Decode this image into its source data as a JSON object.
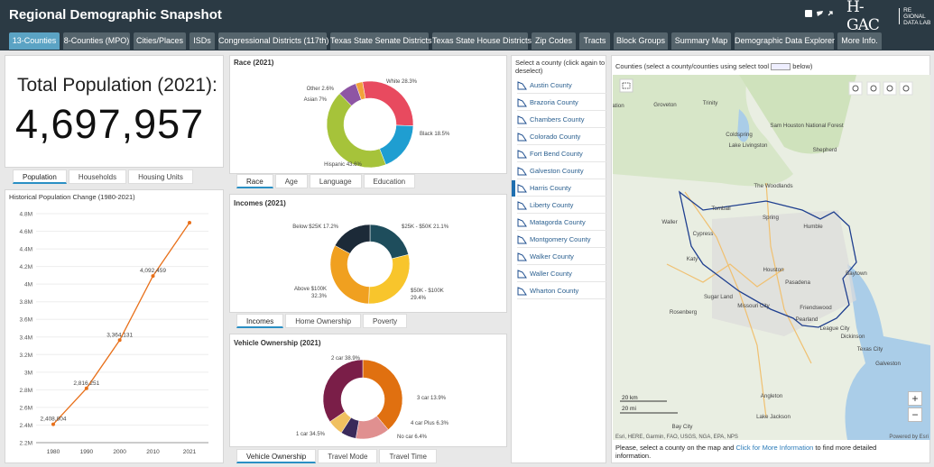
{
  "header": {
    "title": "Regional Demographic Snapshot",
    "social_icons": [
      "facebook-icon",
      "twitter-icon",
      "link-icon"
    ],
    "logo_text": "RE GIONAL DATA LAB",
    "logo_mark": "H-GAC"
  },
  "tabs": [
    {
      "label": "13-Counties",
      "active": true
    },
    {
      "label": "8-Counties (MPO)"
    },
    {
      "label": "Cities/Places"
    },
    {
      "label": "ISDs"
    },
    {
      "label": "Congressional Districts (117th)"
    },
    {
      "label": "Texas State Senate Districts"
    },
    {
      "label": "Texas State House Districts"
    },
    {
      "label": "Zip Codes"
    },
    {
      "label": "Tracts"
    },
    {
      "label": "Block Groups"
    },
    {
      "label": "Summary Map"
    },
    {
      "label": "Demographic Data Explorer"
    },
    {
      "label": "More Info."
    }
  ],
  "total": {
    "label": "Total Population (2021):",
    "value": "4,697,957"
  },
  "pop_tabs": [
    "Population",
    "Households",
    "Housing Units"
  ],
  "line_chart": {
    "title": "Historical Population Change (1980-2021)",
    "chart_data": {
      "type": "line",
      "x": [
        1980,
        1990,
        2000,
        2010,
        2021
      ],
      "y": [
        2408804,
        2816251,
        3364131,
        4092459,
        4697957
      ],
      "point_labels": [
        "2,408,804",
        "2,816,251",
        "3,364,131",
        "4,092,459",
        ""
      ],
      "ylim": [
        2200000,
        4800000
      ],
      "y_ticks": [
        "2.2M",
        "2.4M",
        "2.6M",
        "2.8M",
        "3M",
        "3.2M",
        "3.4M",
        "3.6M",
        "3.8M",
        "4M",
        "4.2M",
        "4.4M",
        "4.6M",
        "4.8M"
      ],
      "x_ticks": [
        "1980",
        "1990",
        "2000",
        "2010",
        "2021"
      ],
      "color": "#e8701a"
    }
  },
  "race": {
    "title": "Race (2021)",
    "chart_data": {
      "type": "pie",
      "slices": [
        {
          "label": "White 28.3%",
          "value": 28.3,
          "color": "#e84a5f"
        },
        {
          "label": "Black 18.5%",
          "value": 18.5,
          "color": "#1f9ed1"
        },
        {
          "label": "Hispanic 43.6%",
          "value": 43.6,
          "color": "#a6c33a"
        },
        {
          "label": "Asian 7%",
          "value": 7.0,
          "color": "#8e55a4"
        },
        {
          "label": "Other 2.6%",
          "value": 2.6,
          "color": "#f2a33a"
        }
      ]
    },
    "tabs": [
      "Race",
      "Age",
      "Language",
      "Education"
    ]
  },
  "incomes": {
    "title": "Incomes (2021)",
    "chart_data": {
      "type": "pie",
      "slices": [
        {
          "label": "$25K - $50K 21.1%",
          "value": 21.1,
          "color": "#1e4d5c"
        },
        {
          "label": "$50K - $100K 29.4%",
          "value": 29.4,
          "color": "#f8c52c"
        },
        {
          "label": "Above $100K 32.3%",
          "value": 32.3,
          "color": "#f0a020"
        },
        {
          "label": "Below $25K 17.2%",
          "value": 17.2,
          "color": "#1c2a38"
        }
      ]
    },
    "tabs": [
      "Incomes",
      "Home Ownership",
      "Poverty"
    ]
  },
  "vehicle": {
    "title": "Vehicle Ownership (2021)",
    "chart_data": {
      "type": "pie",
      "slices": [
        {
          "label": "2 car 38.9%",
          "value": 38.9,
          "color": "#e07010"
        },
        {
          "label": "3 car 13.9%",
          "value": 13.9,
          "color": "#e09090"
        },
        {
          "label": "4 car Plus 6.3%",
          "value": 6.3,
          "color": "#3a2a5a"
        },
        {
          "label": "No car 6.4%",
          "value": 6.4,
          "color": "#f0c060"
        },
        {
          "label": "1 car 34.5%",
          "value": 34.5,
          "color": "#7a1e48"
        }
      ]
    },
    "tabs": [
      "Vehicle Ownership",
      "Travel Mode",
      "Travel Time"
    ]
  },
  "county_list": {
    "header": "Select a county (click again to deselect)",
    "items": [
      {
        "label": "Austin County"
      },
      {
        "label": "Brazoria County"
      },
      {
        "label": "Chambers County"
      },
      {
        "label": "Colorado County"
      },
      {
        "label": "Fort Bend County"
      },
      {
        "label": "Galveston County"
      },
      {
        "label": "Harris County",
        "selected": true
      },
      {
        "label": "Liberty County"
      },
      {
        "label": "Matagorda County"
      },
      {
        "label": "Montgomery County"
      },
      {
        "label": "Walker County"
      },
      {
        "label": "Waller County"
      },
      {
        "label": "Wharton County"
      }
    ]
  },
  "map": {
    "header": "Counties (select a county/counties using select tool",
    "header_end": "below)",
    "labels": [
      "Station",
      "Groveton",
      "Trinity",
      "Coldspring",
      "Sam Houston National Forest",
      "Lake Livingston",
      "Shepherd",
      "The Woodlands",
      "Tomball",
      "Waller",
      "Cypress",
      "Houston",
      "Pasadena",
      "Baytown",
      "Sugar Land",
      "Rosenberg",
      "Pearland",
      "League City",
      "Texas City",
      "Galveston",
      "Angleton",
      "Lake Jackson",
      "Bay City",
      "Humble",
      "Spring",
      "Katy",
      "Missouri City",
      "Friendswood",
      "Dickinson"
    ],
    "scale_km": "20 km",
    "scale_mi": "20 mi",
    "attribution": "Esri, HERE, Garmin, FAO, USGS, NGA, EPA, NPS",
    "powered": "Powered by Esri",
    "zoom_in": "+",
    "zoom_out": "−",
    "footer_text_1": "Please, select a county on the map and",
    "footer_link": "Click for More Information",
    "footer_text_2": "to find more detailed information."
  }
}
